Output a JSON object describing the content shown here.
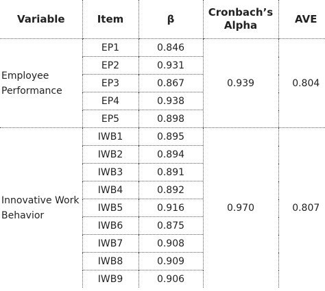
{
  "table": {
    "header": [
      "Variable",
      "Item",
      "β",
      "Cronbach’s Alpha",
      "AVE"
    ],
    "groups": [
      {
        "variable": "Employee Performance",
        "alpha": "0.939",
        "ave": "0.804",
        "items": [
          [
            "EP1",
            "0.846"
          ],
          [
            "EP2",
            "0.931"
          ],
          [
            "EP3",
            "0.867"
          ],
          [
            "EP4",
            "0.938"
          ],
          [
            "EP5",
            "0.898"
          ]
        ]
      },
      {
        "variable": "Innovative Work Behavior",
        "alpha": "0.970",
        "ave": "0.807",
        "items": [
          [
            "IWB1",
            "0.895"
          ],
          [
            "IWB2",
            "0.894"
          ],
          [
            "IWB3",
            "0.891"
          ],
          [
            "IWB4",
            "0.892"
          ],
          [
            "IWB5",
            "0.916"
          ],
          [
            "IWB6",
            "0.875"
          ],
          [
            "IWB7",
            "0.908"
          ],
          [
            "IWB8",
            "0.909"
          ],
          [
            "IWB9",
            "0.906"
          ]
        ]
      }
    ]
  }
}
